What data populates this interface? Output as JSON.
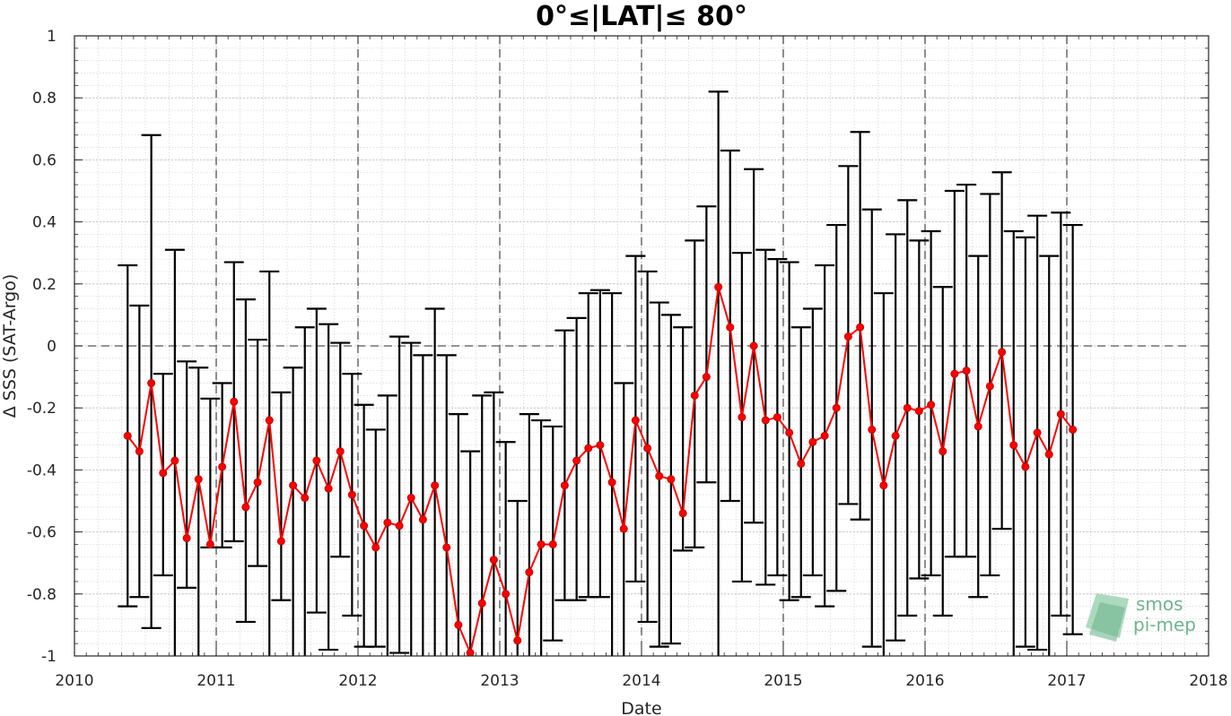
{
  "chart_data": {
    "type": "line",
    "title": "0°≤|LAT|≤ 80°",
    "xlabel": "Date",
    "ylabel": "Δ SSS (SAT-Argo)",
    "xlim": [
      2010,
      2018
    ],
    "ylim": [
      -1,
      1
    ],
    "x_ticks": [
      "2010",
      "2011",
      "2012",
      "2013",
      "2014",
      "2015",
      "2016",
      "2017",
      "2018"
    ],
    "y_ticks": [
      "-1",
      "-0.8",
      "-0.6",
      "-0.4",
      "-0.2",
      "0",
      "0.2",
      "0.4",
      "0.6",
      "0.8",
      "1"
    ],
    "grid": true,
    "reference_line_y": 0,
    "series": [
      {
        "color": "#ff0000",
        "x": [
          2010.375,
          2010.458,
          2010.542,
          2010.625,
          2010.708,
          2010.792,
          2010.875,
          2010.958,
          2011.042,
          2011.125,
          2011.208,
          2011.292,
          2011.375,
          2011.458,
          2011.542,
          2011.625,
          2011.708,
          2011.792,
          2011.875,
          2011.958,
          2012.042,
          2012.125,
          2012.208,
          2012.292,
          2012.375,
          2012.458,
          2012.542,
          2012.625,
          2012.708,
          2012.792,
          2012.875,
          2012.958,
          2013.042,
          2013.125,
          2013.208,
          2013.292,
          2013.375,
          2013.458,
          2013.542,
          2013.625,
          2013.708,
          2013.792,
          2013.875,
          2013.958,
          2014.042,
          2014.125,
          2014.208,
          2014.292,
          2014.375,
          2014.458,
          2014.542,
          2014.625,
          2014.708,
          2014.792,
          2014.875,
          2014.958,
          2015.042,
          2015.125,
          2015.208,
          2015.292,
          2015.375,
          2015.458,
          2015.542,
          2015.625,
          2015.708,
          2015.792,
          2015.875,
          2015.958,
          2016.042,
          2016.125,
          2016.208,
          2016.292,
          2016.375,
          2016.458,
          2016.542,
          2016.625,
          2016.708,
          2016.792,
          2016.875,
          2016.958,
          2017.042
        ],
        "y": [
          -0.29,
          -0.34,
          -0.12,
          -0.41,
          -0.37,
          -0.62,
          -0.43,
          -0.64,
          -0.39,
          -0.18,
          -0.52,
          -0.44,
          -0.24,
          -0.63,
          -0.45,
          -0.49,
          -0.37,
          -0.46,
          -0.34,
          -0.48,
          -0.58,
          -0.65,
          -0.57,
          -0.58,
          -0.49,
          -0.56,
          -0.45,
          -0.65,
          -0.9,
          -0.99,
          -0.83,
          -0.69,
          -0.8,
          -0.95,
          -0.73,
          -0.64,
          -0.64,
          -0.45,
          -0.37,
          -0.33,
          -0.32,
          -0.44,
          -0.59,
          -0.24,
          -0.33,
          -0.42,
          -0.43,
          -0.54,
          -0.16,
          -0.1,
          0.19,
          0.06,
          -0.23,
          0.0,
          -0.24,
          -0.23,
          -0.28,
          -0.38,
          -0.31,
          -0.29,
          -0.2,
          0.03,
          0.06,
          -0.27,
          -0.45,
          -0.29,
          -0.2,
          -0.21,
          -0.19,
          -0.34,
          -0.09,
          -0.08,
          -0.26,
          -0.13,
          -0.02,
          -0.32,
          -0.39,
          -0.28,
          -0.35,
          -0.22,
          -0.27
        ],
        "err_low": [
          -0.84,
          -0.81,
          -0.91,
          -0.74,
          -1.05,
          -0.78,
          -1.1,
          -0.65,
          -0.65,
          -0.63,
          -0.89,
          -0.71,
          -1.1,
          -0.82,
          -1.05,
          -1.1,
          -0.86,
          -0.98,
          -0.68,
          -0.87,
          -0.97,
          -0.97,
          -1.1,
          -0.99,
          -1.1,
          -1.1,
          -1.1,
          -1.1,
          -1.1,
          -1.1,
          -1.1,
          -1.1,
          -1.1,
          -1.1,
          -1.1,
          -1.1,
          -0.95,
          -0.82,
          -0.82,
          -0.81,
          -0.81,
          -1.1,
          -1.1,
          -0.76,
          -0.89,
          -0.97,
          -0.96,
          -0.66,
          -0.65,
          -0.44,
          -1.05,
          -0.5,
          -0.76,
          -0.57,
          -0.77,
          -0.74,
          -0.82,
          -0.81,
          -0.74,
          -0.84,
          -0.79,
          -0.51,
          -0.56,
          -0.97,
          -1.1,
          -0.95,
          -0.87,
          -0.75,
          -0.74,
          -0.87,
          -0.68,
          -0.68,
          -0.81,
          -0.74,
          -0.59,
          -1.1,
          -0.97,
          -0.98,
          -1.1,
          -0.87,
          -0.93
        ],
        "err_high": [
          0.26,
          0.13,
          0.68,
          -0.09,
          0.31,
          -0.05,
          -0.07,
          -0.17,
          -0.12,
          0.27,
          0.15,
          0.02,
          0.24,
          -0.15,
          -0.07,
          0.06,
          0.12,
          0.07,
          0.01,
          -0.09,
          -0.19,
          -0.27,
          -0.16,
          0.03,
          0.01,
          -0.03,
          0.12,
          -0.03,
          -0.22,
          -0.34,
          -0.16,
          -0.15,
          -0.31,
          -0.5,
          -0.22,
          -0.24,
          -0.26,
          0.05,
          0.09,
          0.17,
          0.18,
          0.17,
          -0.12,
          0.29,
          0.24,
          0.14,
          0.1,
          0.06,
          0.34,
          0.45,
          0.82,
          0.63,
          0.3,
          0.57,
          0.31,
          0.28,
          0.27,
          0.06,
          0.12,
          0.26,
          0.39,
          0.58,
          0.69,
          0.44,
          0.17,
          0.36,
          0.47,
          0.34,
          0.37,
          0.19,
          0.5,
          0.52,
          0.29,
          0.49,
          0.56,
          0.37,
          0.35,
          0.42,
          0.29,
          0.43,
          0.39
        ]
      }
    ]
  },
  "logo": {
    "line1": "smos",
    "line2": "pi-mep"
  }
}
